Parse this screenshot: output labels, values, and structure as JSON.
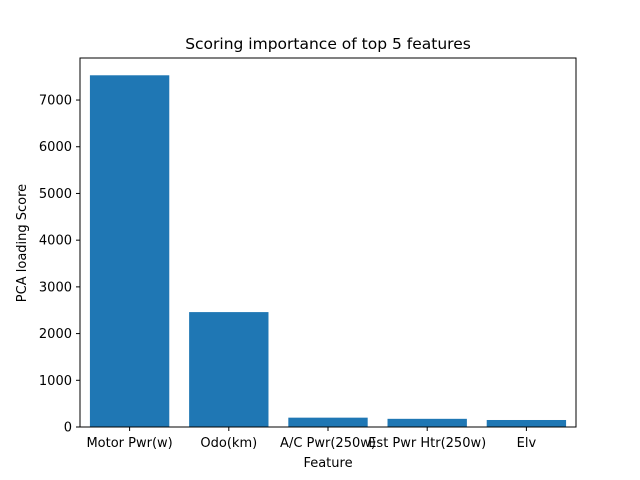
{
  "chart_data": {
    "type": "bar",
    "title": "Scoring importance of top 5 features",
    "xlabel": "Feature",
    "ylabel": "PCA loading Score",
    "categories": [
      "Motor Pwr(w)",
      "Odo(km)",
      "A/C Pwr(250w)",
      "Est Pwr Htr(250w)",
      "Elv"
    ],
    "values": [
      7530,
      2460,
      200,
      175,
      150
    ],
    "ylim": [
      0,
      7900
    ],
    "yticks": [
      0,
      1000,
      2000,
      3000,
      4000,
      5000,
      6000,
      7000
    ],
    "grid": false,
    "bar_color": "#1f77b4"
  }
}
